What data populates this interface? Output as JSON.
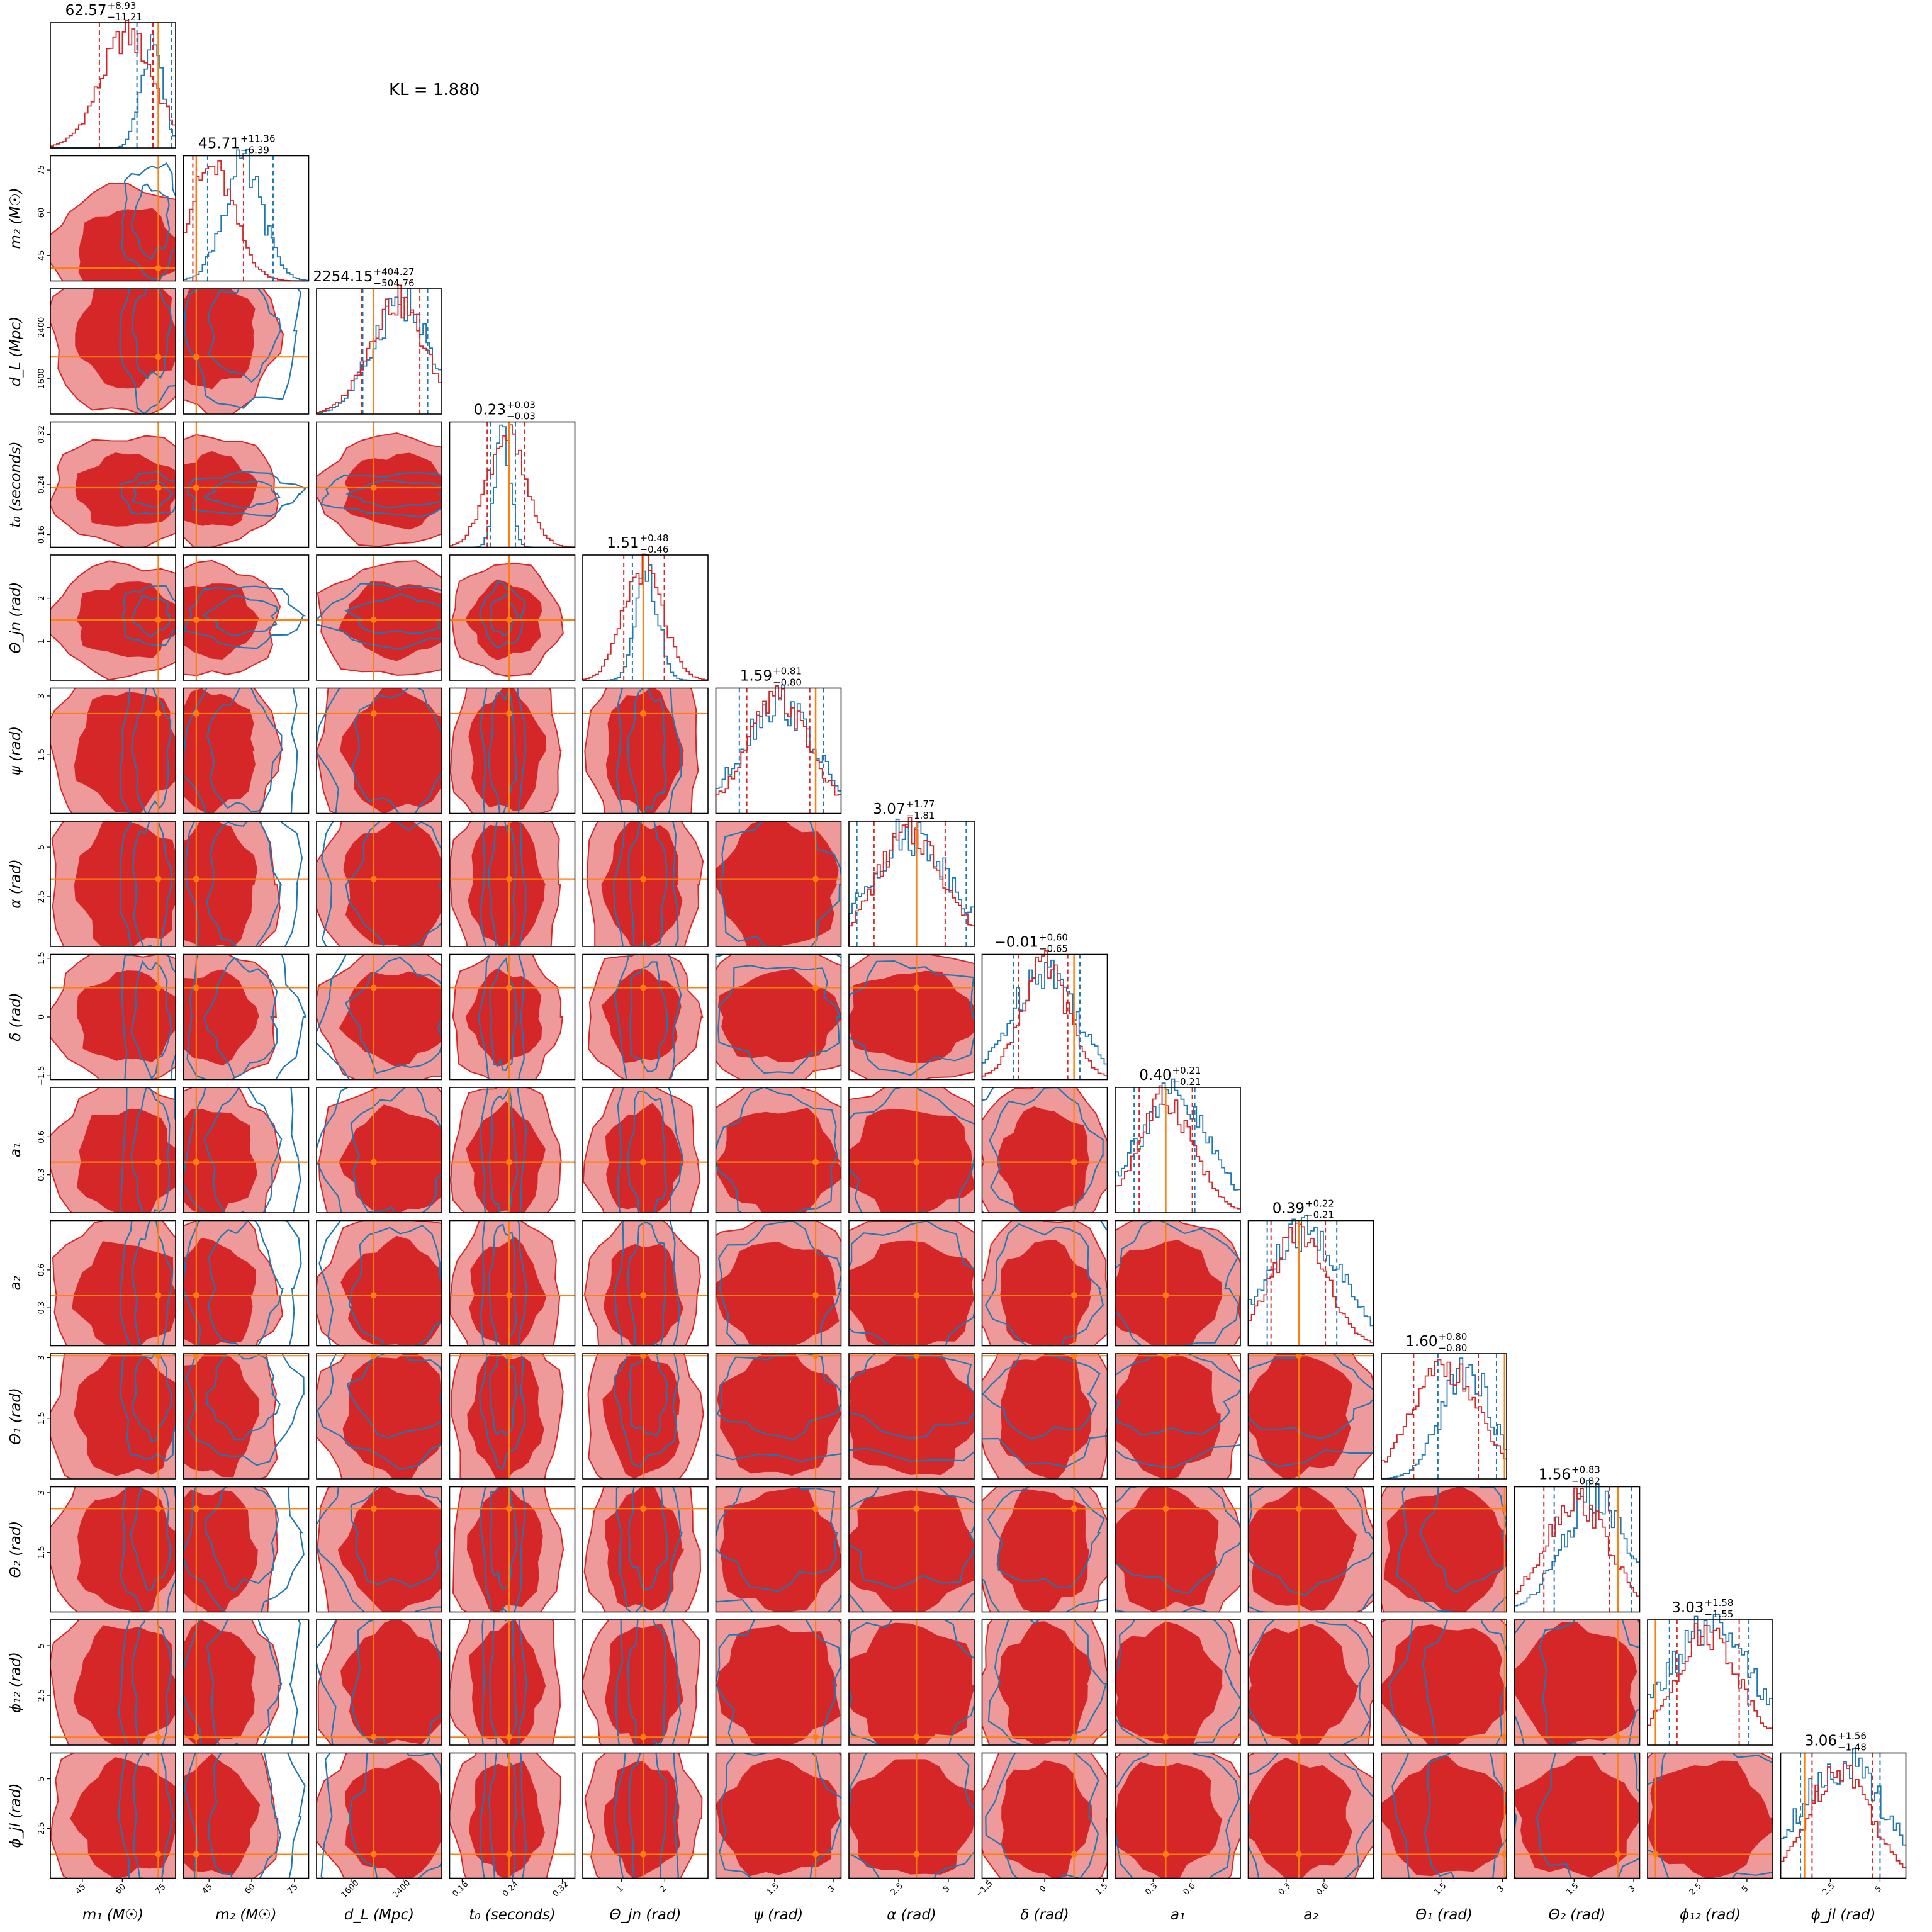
{
  "kl": "KL = 1.880",
  "colors": {
    "posterior_a": "#d62728",
    "posterior_a_light": "#ee9a9a",
    "posterior_b": "#1f77b4",
    "truth": "#ff7f0e"
  },
  "chart_data": {
    "type": "corner",
    "parameters": [
      {
        "key": "m1",
        "label": "m₁ (M☉)",
        "ticks": [
          45,
          60,
          75
        ],
        "range": [
          33,
          80
        ],
        "truth": 73.5,
        "median": 62.57,
        "plus": "8.93",
        "minus": "11.21",
        "title": "62.57",
        "sup": "+8.93",
        "sub": "−11.21",
        "ci_a": [
          51.4,
          71.5
        ],
        "ci_b": [
          65.5,
          78.5
        ],
        "mu_a": 62,
        "sd_a": 10,
        "mu_b": 71,
        "sd_b": 4
      },
      {
        "key": "m2",
        "label": "m₂ (M☉)",
        "ticks": [
          45,
          60,
          75
        ],
        "range": [
          36,
          80
        ],
        "truth": 40.5,
        "median": 45.71,
        "plus": "11.36",
        "minus": "6.39",
        "title": "45.71",
        "sup": "+11.36",
        "sub": "−6.39",
        "ci_a": [
          39.3,
          57.1
        ],
        "ci_b": [
          44.5,
          67.5
        ],
        "mu_a": 46,
        "sd_a": 8,
        "mu_b": 57,
        "sd_b": 7
      },
      {
        "key": "dL",
        "label": "d_L (Mpc)",
        "ticks": [
          1600,
          2400
        ],
        "range": [
          1050,
          3000
        ],
        "truth": 1940,
        "median": 2254.15,
        "plus": "404.27",
        "minus": "504.76",
        "title": "2254.15",
        "sup": "+404.27",
        "sub": "−504.76",
        "ci_a": [
          1749,
          2658
        ],
        "ci_b": [
          1770,
          2780
        ],
        "mu_a": 2300,
        "sd_a": 430,
        "mu_b": 2350,
        "sd_b": 430
      },
      {
        "key": "t0",
        "label": "t₀ (seconds)",
        "ticks": [
          0.16,
          0.24,
          0.32
        ],
        "range": [
          0.14,
          0.34
        ],
        "truth": 0.235,
        "median": 0.23,
        "plus": "0.03",
        "minus": "0.03",
        "title": "0.23",
        "sup": "+0.03",
        "sub": "−0.03",
        "ci_a": [
          0.2,
          0.26
        ],
        "ci_b": [
          0.205,
          0.245
        ],
        "mu_a": 0.23,
        "sd_a": 0.03,
        "mu_b": 0.225,
        "sd_b": 0.012
      },
      {
        "key": "thetajn",
        "label": "Θ_jn (rad)",
        "ticks": [
          1,
          2
        ],
        "range": [
          0.1,
          3.0
        ],
        "truth": 1.5,
        "median": 1.51,
        "plus": "0.48",
        "minus": "0.46",
        "title": "1.51",
        "sup": "+0.48",
        "sub": "−0.46",
        "ci_a": [
          1.05,
          1.99
        ],
        "ci_b": [
          1.25,
          1.99
        ],
        "mu_a": 1.5,
        "sd_a": 0.45,
        "mu_b": 1.6,
        "sd_b": 0.25
      },
      {
        "key": "psi",
        "label": "ψ (rad)",
        "ticks": [
          1.5,
          3.0
        ],
        "range": [
          0.0,
          3.2
        ],
        "truth": 2.55,
        "median": 1.59,
        "plus": "0.81",
        "minus": "0.80",
        "title": "1.59",
        "sup": "+0.81",
        "sub": "−0.80",
        "ci_a": [
          0.79,
          2.4
        ],
        "ci_b": [
          0.6,
          2.75
        ],
        "mu_a": 1.6,
        "sd_a": 0.8,
        "mu_b": 1.6,
        "sd_b": 0.9
      },
      {
        "key": "alpha",
        "label": "α (rad)",
        "ticks": [
          2.5,
          5.0
        ],
        "range": [
          0.0,
          6.3
        ],
        "truth": 3.4,
        "median": 3.07,
        "plus": "1.77",
        "minus": "1.81",
        "title": "3.07",
        "sup": "+1.77",
        "sub": "−1.81",
        "ci_a": [
          1.26,
          4.84
        ],
        "ci_b": [
          0.4,
          5.9
        ],
        "mu_a": 3.1,
        "sd_a": 1.7,
        "mu_b": 3.1,
        "sd_b": 2.0
      },
      {
        "key": "delta",
        "label": "δ (rad)",
        "ticks": [
          -1.5,
          0.0,
          1.5
        ],
        "range": [
          -1.6,
          1.6
        ],
        "truth": 0.75,
        "median": -0.01,
        "plus": "0.60",
        "minus": "0.65",
        "title": "−0.01",
        "sup": "+0.60",
        "sub": "−0.65",
        "ci_a": [
          -0.66,
          0.59
        ],
        "ci_b": [
          -0.8,
          0.9
        ],
        "mu_a": 0.0,
        "sd_a": 0.6,
        "mu_b": 0.0,
        "sd_b": 0.8
      },
      {
        "key": "a1",
        "label": "a₁",
        "ticks": [
          0.3,
          0.6
        ],
        "range": [
          0.0,
          0.99
        ],
        "truth": 0.4,
        "median": 0.4,
        "plus": "0.21",
        "minus": "0.21",
        "title": "0.40",
        "sup": "+0.21",
        "sub": "−0.21",
        "ci_a": [
          0.19,
          0.61
        ],
        "ci_b": [
          0.15,
          0.63
        ],
        "mu_a": 0.4,
        "sd_a": 0.22,
        "mu_b": 0.45,
        "sd_b": 0.3
      },
      {
        "key": "a2",
        "label": "a₂",
        "ticks": [
          0.3,
          0.6
        ],
        "range": [
          0.0,
          0.99
        ],
        "truth": 0.4,
        "median": 0.39,
        "plus": "0.22",
        "minus": "0.21",
        "title": "0.39",
        "sup": "+0.22",
        "sub": "−0.21",
        "ci_a": [
          0.18,
          0.61
        ],
        "ci_b": [
          0.15,
          0.7
        ],
        "mu_a": 0.4,
        "sd_a": 0.22,
        "mu_b": 0.45,
        "sd_b": 0.3
      },
      {
        "key": "theta1",
        "label": "Θ₁ (rad)",
        "ticks": [
          1.5,
          3.0
        ],
        "range": [
          0.0,
          3.1
        ],
        "truth": 3.05,
        "median": 1.6,
        "plus": "0.80",
        "minus": "0.80",
        "title": "1.60",
        "sup": "+0.80",
        "sub": "−0.80",
        "ci_a": [
          0.8,
          2.4
        ],
        "ci_b": [
          1.4,
          2.85
        ],
        "mu_a": 1.6,
        "sd_a": 0.8,
        "mu_b": 2.1,
        "sd_b": 0.6
      },
      {
        "key": "theta2",
        "label": "Θ₂ (rad)",
        "ticks": [
          1.5,
          3.0
        ],
        "range": [
          0.0,
          3.15
        ],
        "truth": 2.6,
        "median": 1.56,
        "plus": "0.83",
        "minus": "0.82",
        "title": "1.56",
        "sup": "+0.83",
        "sub": "−0.82",
        "ci_a": [
          0.74,
          2.39
        ],
        "ci_b": [
          1.0,
          2.95
        ],
        "mu_a": 1.56,
        "sd_a": 0.8,
        "mu_b": 2.0,
        "sd_b": 0.8
      },
      {
        "key": "phi12",
        "label": "ϕ₁₂ (rad)",
        "ticks": [
          2.5,
          5.0
        ],
        "range": [
          0.0,
          6.3
        ],
        "truth": 0.4,
        "median": 3.03,
        "plus": "1.58",
        "minus": "1.55",
        "title": "3.03",
        "sup": "+1.58",
        "sub": "−1.55",
        "ci_a": [
          1.48,
          4.61
        ],
        "ci_b": [
          1.1,
          5.1
        ],
        "mu_a": 3.0,
        "sd_a": 1.6,
        "mu_b": 3.1,
        "sd_b": 2.2
      },
      {
        "key": "phijl",
        "label": "ϕ_jl (rad)",
        "ticks": [
          2.5,
          5.0
        ],
        "range": [
          0.0,
          6.3
        ],
        "truth": 1.2,
        "median": 3.06,
        "plus": "1.56",
        "minus": "1.48",
        "title": "3.06",
        "sup": "+1.56",
        "sub": "−1.48",
        "ci_a": [
          1.58,
          4.62
        ],
        "ci_b": [
          1.0,
          5.0
        ],
        "mu_a": 3.0,
        "sd_a": 1.5,
        "mu_b": 3.1,
        "sd_b": 2.2
      }
    ]
  }
}
